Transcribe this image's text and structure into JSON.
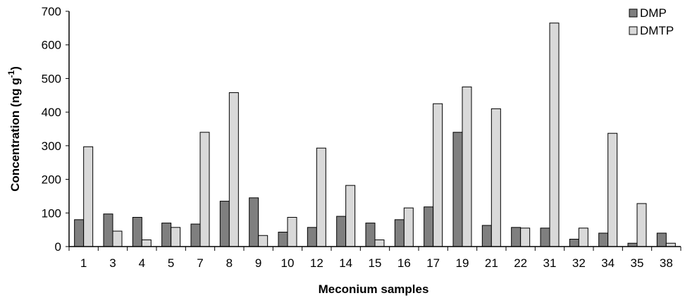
{
  "chart_data": {
    "type": "bar",
    "title": "",
    "xlabel": "Meconium samples",
    "ylabel": "Concentration (ng g",
    "ylabel_superscript": "-1",
    "ylabel_suffix": ")",
    "ylim": [
      0,
      700
    ],
    "yticks": [
      0,
      100,
      200,
      300,
      400,
      500,
      600,
      700
    ],
    "grid": false,
    "legend_position": "top-right",
    "categories": [
      "1",
      "3",
      "4",
      "5",
      "7",
      "8",
      "9",
      "10",
      "12",
      "14",
      "15",
      "16",
      "17",
      "19",
      "21",
      "22",
      "31",
      "32",
      "34",
      "35",
      "38"
    ],
    "series": [
      {
        "name": "DMP",
        "color": "#7f7f7f",
        "values": [
          80,
          97,
          87,
          70,
          67,
          135,
          145,
          43,
          57,
          90,
          70,
          80,
          118,
          340,
          63,
          57,
          55,
          22,
          40,
          10,
          40
        ]
      },
      {
        "name": "DMTP",
        "color": "#d9d9d9",
        "values": [
          297,
          46,
          20,
          57,
          340,
          458,
          33,
          87,
          293,
          182,
          20,
          115,
          425,
          475,
          410,
          55,
          665,
          55,
          337,
          128,
          10
        ]
      }
    ]
  }
}
